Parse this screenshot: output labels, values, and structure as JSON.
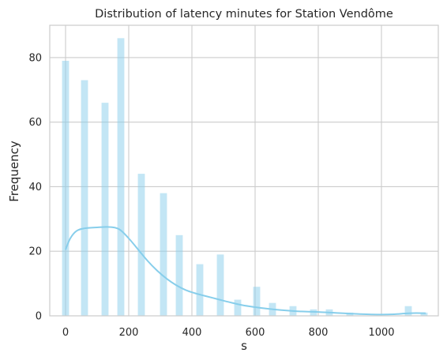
{
  "chart_data": {
    "type": "bar",
    "title": "Distribution of latency minutes for Station Vendôme",
    "xlabel": "s",
    "ylabel": "Frequency",
    "xlim": [
      -50,
      1180
    ],
    "ylim": [
      0,
      90
    ],
    "x_ticks": [
      0,
      200,
      400,
      600,
      800,
      1000
    ],
    "y_ticks": [
      0,
      20,
      40,
      60,
      80
    ],
    "grid": true,
    "bar_color": "#87CEEB",
    "kde_color": "#87CEEB",
    "grid_color": "#cccccc",
    "bins": [
      {
        "x": 0,
        "count": 79
      },
      {
        "x": 60,
        "count": 73
      },
      {
        "x": 125,
        "count": 66
      },
      {
        "x": 175,
        "count": 86
      },
      {
        "x": 240,
        "count": 44
      },
      {
        "x": 310,
        "count": 38
      },
      {
        "x": 360,
        "count": 25
      },
      {
        "x": 425,
        "count": 16
      },
      {
        "x": 490,
        "count": 19
      },
      {
        "x": 545,
        "count": 5
      },
      {
        "x": 605,
        "count": 9
      },
      {
        "x": 655,
        "count": 4
      },
      {
        "x": 720,
        "count": 3
      },
      {
        "x": 785,
        "count": 2
      },
      {
        "x": 835,
        "count": 2
      },
      {
        "x": 900,
        "count": 1
      },
      {
        "x": 1085,
        "count": 3
      },
      {
        "x": 1135,
        "count": 1
      }
    ],
    "kde": [
      {
        "x": 0,
        "y": 20.5
      },
      {
        "x": 15,
        "y": 24
      },
      {
        "x": 35,
        "y": 26.3
      },
      {
        "x": 60,
        "y": 27.1
      },
      {
        "x": 100,
        "y": 27.4
      },
      {
        "x": 140,
        "y": 27.5
      },
      {
        "x": 170,
        "y": 26.8
      },
      {
        "x": 200,
        "y": 24
      },
      {
        "x": 230,
        "y": 20.5
      },
      {
        "x": 260,
        "y": 17
      },
      {
        "x": 290,
        "y": 14
      },
      {
        "x": 320,
        "y": 11.5
      },
      {
        "x": 350,
        "y": 9.5
      },
      {
        "x": 380,
        "y": 8
      },
      {
        "x": 410,
        "y": 7
      },
      {
        "x": 440,
        "y": 6.2
      },
      {
        "x": 480,
        "y": 5.2
      },
      {
        "x": 520,
        "y": 4.2
      },
      {
        "x": 560,
        "y": 3.3
      },
      {
        "x": 600,
        "y": 2.7
      },
      {
        "x": 640,
        "y": 2.2
      },
      {
        "x": 680,
        "y": 1.8
      },
      {
        "x": 720,
        "y": 1.5
      },
      {
        "x": 760,
        "y": 1.3
      },
      {
        "x": 800,
        "y": 1.2
      },
      {
        "x": 840,
        "y": 1.0
      },
      {
        "x": 880,
        "y": 0.8
      },
      {
        "x": 920,
        "y": 0.6
      },
      {
        "x": 960,
        "y": 0.45
      },
      {
        "x": 1000,
        "y": 0.4
      },
      {
        "x": 1040,
        "y": 0.5
      },
      {
        "x": 1080,
        "y": 0.75
      },
      {
        "x": 1110,
        "y": 0.85
      },
      {
        "x": 1140,
        "y": 0.8
      }
    ]
  }
}
